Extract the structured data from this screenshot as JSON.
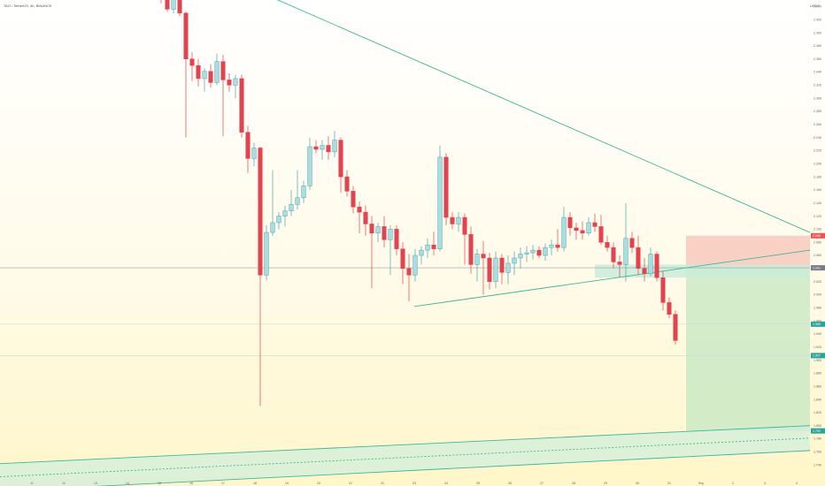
{
  "chart_data": {
    "type": "candlestick",
    "title": "TAO / TetherUS, 4h, BINANCE",
    "currency_label": "USDT",
    "ylim": [
      1.72,
      2.45
    ],
    "xlim": [
      0,
      905
    ],
    "x_ticks": [
      {
        "label": "11",
        "x": 36
      },
      {
        "label": "12",
        "x": 72
      },
      {
        "label": "13",
        "x": 108
      },
      {
        "label": "14",
        "x": 144
      },
      {
        "label": "15",
        "x": 180
      },
      {
        "label": "16",
        "x": 216
      },
      {
        "label": "17",
        "x": 252
      },
      {
        "label": "18",
        "x": 288
      },
      {
        "label": "19",
        "x": 324
      },
      {
        "label": "20",
        "x": 360
      },
      {
        "label": "21",
        "x": 396
      },
      {
        "label": "22",
        "x": 432
      },
      {
        "label": "23",
        "x": 468
      },
      {
        "label": "24",
        "x": 504
      },
      {
        "label": "25",
        "x": 540
      },
      {
        "label": "26",
        "x": 576
      },
      {
        "label": "27",
        "x": 612
      },
      {
        "label": "28",
        "x": 648
      },
      {
        "label": "29",
        "x": 684
      },
      {
        "label": "30",
        "x": 720
      },
      {
        "label": "31",
        "x": 756
      },
      {
        "label": "Sep",
        "x": 792
      },
      {
        "label": "2",
        "x": 828
      },
      {
        "label": "3",
        "x": 864
      },
      {
        "label": "4",
        "x": 900
      }
    ],
    "y_ticks": [
      2.44,
      2.42,
      2.4,
      2.38,
      2.36,
      2.34,
      2.32,
      2.3,
      2.28,
      2.26,
      2.24,
      2.22,
      2.2,
      2.18,
      2.16,
      2.14,
      2.12,
      2.1,
      2.08,
      2.06,
      2.04,
      2.02,
      2.0,
      1.98,
      1.96,
      1.94,
      1.92,
      1.9,
      1.88,
      1.86,
      1.84,
      1.82,
      1.8,
      1.78,
      1.76,
      1.74
    ],
    "price_tags": [
      {
        "label": "2.090",
        "value": 2.09,
        "color": "#ef5350"
      },
      {
        "label": "2.041",
        "value": 2.041,
        "color": "#787b86"
      },
      {
        "label": "1.955",
        "value": 1.955,
        "color": "#26a69a"
      },
      {
        "label": "1.907",
        "value": 1.907,
        "color": "#26a69a"
      },
      {
        "label": "1.792",
        "value": 1.792,
        "color": "#26a69a"
      }
    ],
    "candles": [
      {
        "x": 182,
        "o": 2.472,
        "h": 2.478,
        "l": 2.445,
        "c": 2.452
      },
      {
        "x": 189,
        "o": 2.452,
        "h": 2.47,
        "l": 2.432,
        "c": 2.436
      },
      {
        "x": 196,
        "o": 2.436,
        "h": 2.466,
        "l": 2.43,
        "c": 2.461
      },
      {
        "x": 203,
        "o": 2.461,
        "h": 2.466,
        "l": 2.425,
        "c": 2.43
      },
      {
        "x": 210,
        "o": 2.43,
        "h": 2.432,
        "l": 2.24,
        "c": 2.36
      },
      {
        "x": 217,
        "o": 2.36,
        "h": 2.37,
        "l": 2.326,
        "c": 2.35
      },
      {
        "x": 224,
        "o": 2.35,
        "h": 2.36,
        "l": 2.318,
        "c": 2.33
      },
      {
        "x": 231,
        "o": 2.33,
        "h": 2.346,
        "l": 2.31,
        "c": 2.341
      },
      {
        "x": 238,
        "o": 2.341,
        "h": 2.352,
        "l": 2.316,
        "c": 2.324
      },
      {
        "x": 245,
        "o": 2.324,
        "h": 2.368,
        "l": 2.32,
        "c": 2.356
      },
      {
        "x": 252,
        "o": 2.356,
        "h": 2.366,
        "l": 2.242,
        "c": 2.328
      },
      {
        "x": 259,
        "o": 2.328,
        "h": 2.338,
        "l": 2.31,
        "c": 2.32
      },
      {
        "x": 266,
        "o": 2.32,
        "h": 2.336,
        "l": 2.3,
        "c": 2.33
      },
      {
        "x": 273,
        "o": 2.33,
        "h": 2.336,
        "l": 2.24,
        "c": 2.248
      },
      {
        "x": 280,
        "o": 2.248,
        "h": 2.258,
        "l": 2.186,
        "c": 2.208
      },
      {
        "x": 287,
        "o": 2.208,
        "h": 2.232,
        "l": 2.196,
        "c": 2.224
      },
      {
        "x": 294,
        "o": 2.224,
        "h": 2.226,
        "l": 1.83,
        "c": 2.03
      },
      {
        "x": 301,
        "o": 2.03,
        "h": 2.106,
        "l": 2.022,
        "c": 2.095
      },
      {
        "x": 308,
        "o": 2.095,
        "h": 2.19,
        "l": 2.09,
        "c": 2.11
      },
      {
        "x": 315,
        "o": 2.11,
        "h": 2.126,
        "l": 2.1,
        "c": 2.12
      },
      {
        "x": 322,
        "o": 2.12,
        "h": 2.136,
        "l": 2.104,
        "c": 2.128
      },
      {
        "x": 329,
        "o": 2.128,
        "h": 2.16,
        "l": 2.12,
        "c": 2.138
      },
      {
        "x": 336,
        "o": 2.138,
        "h": 2.19,
        "l": 2.13,
        "c": 2.148
      },
      {
        "x": 343,
        "o": 2.148,
        "h": 2.174,
        "l": 2.14,
        "c": 2.166
      },
      {
        "x": 350,
        "o": 2.166,
        "h": 2.24,
        "l": 2.16,
        "c": 2.226
      },
      {
        "x": 357,
        "o": 2.226,
        "h": 2.236,
        "l": 2.216,
        "c": 2.222
      },
      {
        "x": 364,
        "o": 2.222,
        "h": 2.236,
        "l": 2.206,
        "c": 2.228
      },
      {
        "x": 371,
        "o": 2.228,
        "h": 2.242,
        "l": 2.206,
        "c": 2.218
      },
      {
        "x": 378,
        "o": 2.218,
        "h": 2.25,
        "l": 2.21,
        "c": 2.236
      },
      {
        "x": 385,
        "o": 2.236,
        "h": 2.24,
        "l": 2.156,
        "c": 2.18
      },
      {
        "x": 392,
        "o": 2.18,
        "h": 2.19,
        "l": 2.15,
        "c": 2.158
      },
      {
        "x": 399,
        "o": 2.158,
        "h": 2.166,
        "l": 2.124,
        "c": 2.134
      },
      {
        "x": 406,
        "o": 2.134,
        "h": 2.142,
        "l": 2.094,
        "c": 2.126
      },
      {
        "x": 413,
        "o": 2.126,
        "h": 2.136,
        "l": 2.09,
        "c": 2.108
      },
      {
        "x": 420,
        "o": 2.108,
        "h": 2.12,
        "l": 2.01,
        "c": 2.094
      },
      {
        "x": 427,
        "o": 2.094,
        "h": 2.11,
        "l": 2.08,
        "c": 2.104
      },
      {
        "x": 434,
        "o": 2.104,
        "h": 2.12,
        "l": 2.072,
        "c": 2.084
      },
      {
        "x": 441,
        "o": 2.084,
        "h": 2.106,
        "l": 2.03,
        "c": 2.1
      },
      {
        "x": 448,
        "o": 2.1,
        "h": 2.106,
        "l": 2.06,
        "c": 2.07
      },
      {
        "x": 455,
        "o": 2.07,
        "h": 2.08,
        "l": 2.016,
        "c": 2.04
      },
      {
        "x": 462,
        "o": 2.04,
        "h": 2.062,
        "l": 1.99,
        "c": 2.03
      },
      {
        "x": 469,
        "o": 2.03,
        "h": 2.07,
        "l": 2.02,
        "c": 2.06
      },
      {
        "x": 476,
        "o": 2.06,
        "h": 2.074,
        "l": 2.046,
        "c": 2.068
      },
      {
        "x": 483,
        "o": 2.068,
        "h": 2.086,
        "l": 2.056,
        "c": 2.076
      },
      {
        "x": 490,
        "o": 2.076,
        "h": 2.096,
        "l": 2.06,
        "c": 2.07
      },
      {
        "x": 497,
        "o": 2.07,
        "h": 2.228,
        "l": 2.066,
        "c": 2.21
      },
      {
        "x": 504,
        "o": 2.21,
        "h": 2.216,
        "l": 2.106,
        "c": 2.118
      },
      {
        "x": 511,
        "o": 2.118,
        "h": 2.126,
        "l": 2.1,
        "c": 2.108
      },
      {
        "x": 518,
        "o": 2.108,
        "h": 2.126,
        "l": 2.096,
        "c": 2.118
      },
      {
        "x": 525,
        "o": 2.118,
        "h": 2.124,
        "l": 2.046,
        "c": 2.092
      },
      {
        "x": 532,
        "o": 2.092,
        "h": 2.104,
        "l": 2.032,
        "c": 2.046
      },
      {
        "x": 539,
        "o": 2.046,
        "h": 2.07,
        "l": 2.02,
        "c": 2.062
      },
      {
        "x": 546,
        "o": 2.062,
        "h": 2.082,
        "l": 2.0,
        "c": 2.056
      },
      {
        "x": 553,
        "o": 2.056,
        "h": 2.064,
        "l": 2.008,
        "c": 2.02
      },
      {
        "x": 560,
        "o": 2.02,
        "h": 2.066,
        "l": 2.01,
        "c": 2.056
      },
      {
        "x": 567,
        "o": 2.056,
        "h": 2.062,
        "l": 2.016,
        "c": 2.034
      },
      {
        "x": 574,
        "o": 2.034,
        "h": 2.06,
        "l": 2.016,
        "c": 2.048
      },
      {
        "x": 581,
        "o": 2.048,
        "h": 2.066,
        "l": 2.03,
        "c": 2.056
      },
      {
        "x": 588,
        "o": 2.056,
        "h": 2.072,
        "l": 2.04,
        "c": 2.062
      },
      {
        "x": 595,
        "o": 2.062,
        "h": 2.074,
        "l": 2.05,
        "c": 2.064
      },
      {
        "x": 602,
        "o": 2.064,
        "h": 2.076,
        "l": 2.054,
        "c": 2.068
      },
      {
        "x": 609,
        "o": 2.068,
        "h": 2.074,
        "l": 2.056,
        "c": 2.06
      },
      {
        "x": 616,
        "o": 2.06,
        "h": 2.078,
        "l": 2.052,
        "c": 2.072
      },
      {
        "x": 623,
        "o": 2.072,
        "h": 2.084,
        "l": 2.06,
        "c": 2.076
      },
      {
        "x": 630,
        "o": 2.076,
        "h": 2.1,
        "l": 2.066,
        "c": 2.072
      },
      {
        "x": 637,
        "o": 2.072,
        "h": 2.134,
        "l": 2.066,
        "c": 2.118
      },
      {
        "x": 644,
        "o": 2.118,
        "h": 2.126,
        "l": 2.09,
        "c": 2.102
      },
      {
        "x": 651,
        "o": 2.102,
        "h": 2.11,
        "l": 2.084,
        "c": 2.098
      },
      {
        "x": 658,
        "o": 2.098,
        "h": 2.112,
        "l": 2.084,
        "c": 2.094
      },
      {
        "x": 665,
        "o": 2.094,
        "h": 2.118,
        "l": 2.09,
        "c": 2.11
      },
      {
        "x": 672,
        "o": 2.11,
        "h": 2.124,
        "l": 2.096,
        "c": 2.104
      },
      {
        "x": 679,
        "o": 2.104,
        "h": 2.122,
        "l": 2.076,
        "c": 2.08
      },
      {
        "x": 686,
        "o": 2.08,
        "h": 2.09,
        "l": 2.066,
        "c": 2.072
      },
      {
        "x": 693,
        "o": 2.072,
        "h": 2.08,
        "l": 2.04,
        "c": 2.05
      },
      {
        "x": 700,
        "o": 2.05,
        "h": 2.06,
        "l": 2.026,
        "c": 2.046
      },
      {
        "x": 707,
        "o": 2.046,
        "h": 2.14,
        "l": 2.02,
        "c": 2.086
      },
      {
        "x": 714,
        "o": 2.086,
        "h": 2.096,
        "l": 2.064,
        "c": 2.072
      },
      {
        "x": 721,
        "o": 2.072,
        "h": 2.09,
        "l": 2.03,
        "c": 2.04
      },
      {
        "x": 728,
        "o": 2.04,
        "h": 2.056,
        "l": 2.02,
        "c": 2.032
      },
      {
        "x": 735,
        "o": 2.032,
        "h": 2.072,
        "l": 2.028,
        "c": 2.062
      },
      {
        "x": 742,
        "o": 2.062,
        "h": 2.066,
        "l": 2.02,
        "c": 2.026
      },
      {
        "x": 749,
        "o": 2.026,
        "h": 2.036,
        "l": 1.976,
        "c": 1.988
      },
      {
        "x": 756,
        "o": 1.988,
        "h": 1.996,
        "l": 1.964,
        "c": 1.97
      },
      {
        "x": 763,
        "o": 1.97,
        "h": 1.976,
        "l": 1.924,
        "c": 1.93
      }
    ],
    "trendlines": [
      {
        "from": {
          "x": 280,
          "y": 2.47
        },
        "to": {
          "x": 915,
          "y": 2.095
        },
        "color": "#3bb89a"
      },
      {
        "from": {
          "x": 468,
          "y": 1.982
        },
        "to": {
          "x": 915,
          "y": 2.068
        },
        "color": "#3bb89a"
      },
      {
        "from": {
          "x": 0,
          "y": 1.742
        },
        "to": {
          "x": 915,
          "y": 1.8
        },
        "color": "#3bb89a"
      },
      {
        "from": {
          "x": 0,
          "y": 1.7
        },
        "to": {
          "x": 915,
          "y": 1.762
        },
        "color": "#3bb89a"
      },
      {
        "from": {
          "x": 0,
          "y": 1.722
        },
        "to": {
          "x": 915,
          "y": 1.781
        },
        "color": "#3bb89a",
        "dashed": true
      }
    ],
    "channel_band": {
      "top_left": 1.742,
      "top_right": 1.8,
      "bottom_left": 1.7,
      "bottom_right": 1.762,
      "color": "#cfeedd"
    },
    "zones": [
      {
        "name": "stop",
        "x1": 775,
        "x2": 915,
        "y1": 2.09,
        "y2": 2.041,
        "color": "#f7c9bd"
      },
      {
        "name": "target",
        "x1": 775,
        "x2": 915,
        "y1": 2.041,
        "y2": 1.792,
        "color": "#cde9c6"
      },
      {
        "name": "support-box",
        "x1": 672,
        "x2": 915,
        "y1": 2.046,
        "y2": 2.026,
        "color": "#c9ecd9"
      }
    ],
    "hlines": [
      {
        "y": 1.955,
        "color": "#c9dfd3"
      },
      {
        "y": 1.907,
        "color": "#c9dfd3"
      },
      {
        "y": 2.041,
        "color": "#9aa0a6"
      }
    ],
    "colors": {
      "up": "#a8dde2",
      "up_border": "#4aa3a8",
      "down": "#e2434f"
    }
  }
}
